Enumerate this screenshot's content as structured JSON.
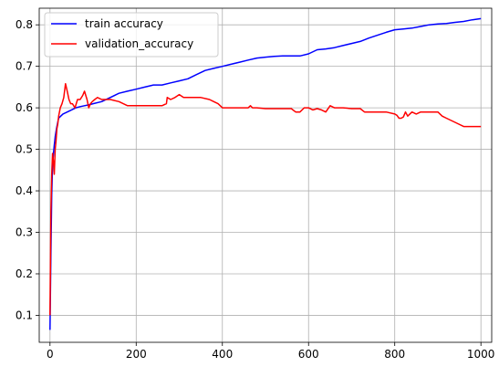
{
  "chart_data": {
    "type": "line",
    "title": "",
    "xlabel": "",
    "ylabel": "",
    "xlim": [
      -25,
      1025
    ],
    "ylim": [
      0.035,
      0.84
    ],
    "xticks": [
      0,
      200,
      400,
      600,
      800,
      1000
    ],
    "yticks": [
      0.1,
      0.2,
      0.3,
      0.4,
      0.5,
      0.6,
      0.7,
      0.8
    ],
    "grid": true,
    "legend_position": "top-left",
    "series": [
      {
        "name": "train accuracy",
        "color": "#0000ff",
        "x": [
          0,
          2,
          4,
          6,
          8,
          10,
          12,
          15,
          18,
          20,
          25,
          30,
          40,
          50,
          60,
          70,
          80,
          90,
          100,
          120,
          140,
          160,
          180,
          200,
          220,
          240,
          260,
          280,
          300,
          320,
          340,
          360,
          380,
          400,
          420,
          440,
          460,
          480,
          500,
          520,
          540,
          560,
          580,
          600,
          620,
          640,
          660,
          680,
          700,
          720,
          740,
          760,
          780,
          800,
          820,
          840,
          860,
          880,
          900,
          920,
          940,
          960,
          980,
          1000
        ],
        "y": [
          0.065,
          0.25,
          0.39,
          0.46,
          0.49,
          0.51,
          0.53,
          0.55,
          0.565,
          0.575,
          0.58,
          0.585,
          0.59,
          0.595,
          0.6,
          0.603,
          0.605,
          0.607,
          0.61,
          0.615,
          0.625,
          0.635,
          0.64,
          0.645,
          0.65,
          0.655,
          0.655,
          0.66,
          0.665,
          0.67,
          0.68,
          0.69,
          0.695,
          0.7,
          0.705,
          0.71,
          0.715,
          0.72,
          0.722,
          0.724,
          0.725,
          0.725,
          0.725,
          0.73,
          0.74,
          0.742,
          0.745,
          0.75,
          0.755,
          0.76,
          0.768,
          0.775,
          0.782,
          0.788,
          0.79,
          0.792,
          0.796,
          0.8,
          0.802,
          0.803,
          0.806,
          0.808,
          0.812,
          0.815
        ]
      },
      {
        "name": "validation_accuracy",
        "color": "#ff0000",
        "x": [
          0,
          2,
          4,
          6,
          8,
          10,
          12,
          14,
          16,
          18,
          20,
          24,
          28,
          32,
          36,
          40,
          44,
          48,
          52,
          58,
          64,
          70,
          76,
          80,
          86,
          90,
          94,
          98,
          104,
          110,
          120,
          140,
          160,
          180,
          200,
          220,
          240,
          260,
          270,
          272,
          280,
          290,
          300,
          310,
          320,
          350,
          370,
          380,
          390,
          400,
          420,
          440,
          460,
          465,
          470,
          480,
          500,
          520,
          540,
          560,
          570,
          580,
          590,
          600,
          610,
          620,
          630,
          640,
          650,
          660,
          680,
          700,
          710,
          720,
          730,
          740,
          760,
          780,
          800,
          805,
          810,
          815,
          820,
          825,
          830,
          840,
          850,
          860,
          880,
          900,
          910,
          920,
          940,
          960,
          980,
          1000
        ],
        "y": [
          0.1,
          0.35,
          0.44,
          0.49,
          0.47,
          0.44,
          0.5,
          0.52,
          0.55,
          0.56,
          0.58,
          0.6,
          0.61,
          0.625,
          0.658,
          0.64,
          0.62,
          0.61,
          0.61,
          0.6,
          0.62,
          0.62,
          0.63,
          0.64,
          0.62,
          0.6,
          0.61,
          0.615,
          0.62,
          0.625,
          0.62,
          0.62,
          0.615,
          0.605,
          0.605,
          0.605,
          0.605,
          0.605,
          0.61,
          0.625,
          0.62,
          0.625,
          0.632,
          0.625,
          0.625,
          0.625,
          0.62,
          0.615,
          0.61,
          0.6,
          0.6,
          0.6,
          0.6,
          0.605,
          0.6,
          0.6,
          0.598,
          0.598,
          0.598,
          0.598,
          0.59,
          0.59,
          0.6,
          0.6,
          0.595,
          0.598,
          0.595,
          0.59,
          0.605,
          0.6,
          0.6,
          0.598,
          0.598,
          0.598,
          0.59,
          0.59,
          0.59,
          0.59,
          0.585,
          0.582,
          0.575,
          0.575,
          0.578,
          0.59,
          0.58,
          0.59,
          0.585,
          0.59,
          0.59,
          0.59,
          0.58,
          0.575,
          0.565,
          0.555,
          0.555,
          0.555
        ]
      }
    ]
  }
}
